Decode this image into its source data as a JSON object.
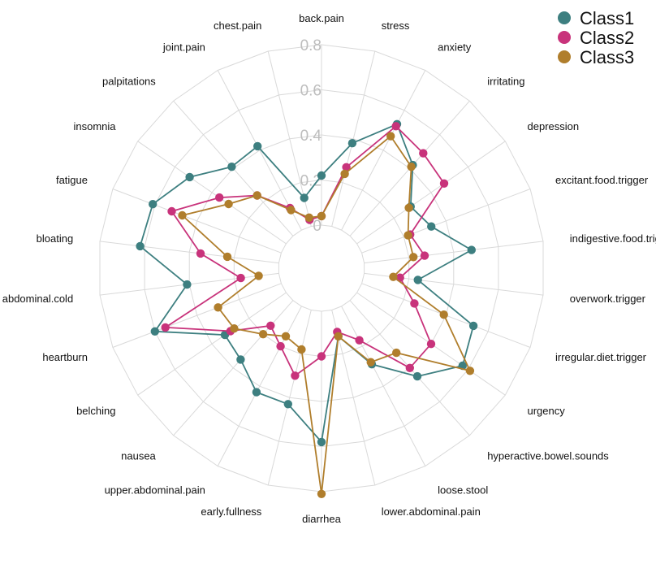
{
  "chart_data": {
    "type": "radar",
    "title": "",
    "ylim": [
      0,
      0.8
    ],
    "ticks": [
      "0",
      "0.2",
      "0.4",
      "0.6",
      "0.8"
    ],
    "grid": true,
    "legend_position": "top-right",
    "categories": [
      "back.pain",
      "stress",
      "anxiety",
      "irritating",
      "depression",
      "excitant.food.trigger",
      "indigestive.food.trigger",
      "overwork.trigger",
      "irregular.diet.trigger",
      "urgency",
      "hyperactive.bowel.sounds",
      "loose.stool",
      "lower.abdominal.pain",
      "diarrhea",
      "early.fullness",
      "upper.abdominal.pain",
      "nausea",
      "belching",
      "heartburn",
      "abdominal.cold",
      "bloating",
      "fatigue",
      "insomnia",
      "palpitations",
      "joint.pain",
      "chest.pain"
    ],
    "series": [
      {
        "name": "Class1",
        "color": "#3d7f80",
        "values": [
          0.22,
          0.38,
          0.53,
          0.42,
          0.29,
          0.33,
          0.48,
          0.24,
          0.53,
          0.57,
          0.45,
          0.29,
          0.12,
          0.58,
          0.43,
          0.43,
          0.35,
          0.33,
          0.6,
          0.41,
          0.62,
          0.61,
          0.52,
          0.41,
          0.42,
          0.13
        ]
      },
      {
        "name": "Class2",
        "color": "#c8337b",
        "values": [
          0.04,
          0.27,
          0.52,
          0.49,
          0.47,
          0.23,
          0.27,
          0.16,
          0.25,
          0.4,
          0.4,
          0.17,
          0.1,
          0.2,
          0.3,
          0.2,
          0.15,
          0.3,
          0.55,
          0.17,
          0.35,
          0.52,
          0.36,
          0.24,
          0.11,
          0.03
        ]
      },
      {
        "name": "Class3",
        "color": "#b07e2c",
        "values": [
          0.04,
          0.24,
          0.47,
          0.41,
          0.28,
          0.22,
          0.22,
          0.13,
          0.39,
          0.61,
          0.31,
          0.28,
          0.12,
          0.81,
          0.18,
          0.15,
          0.2,
          0.28,
          0.3,
          0.09,
          0.23,
          0.47,
          0.31,
          0.24,
          0.1,
          0.04
        ]
      }
    ]
  }
}
